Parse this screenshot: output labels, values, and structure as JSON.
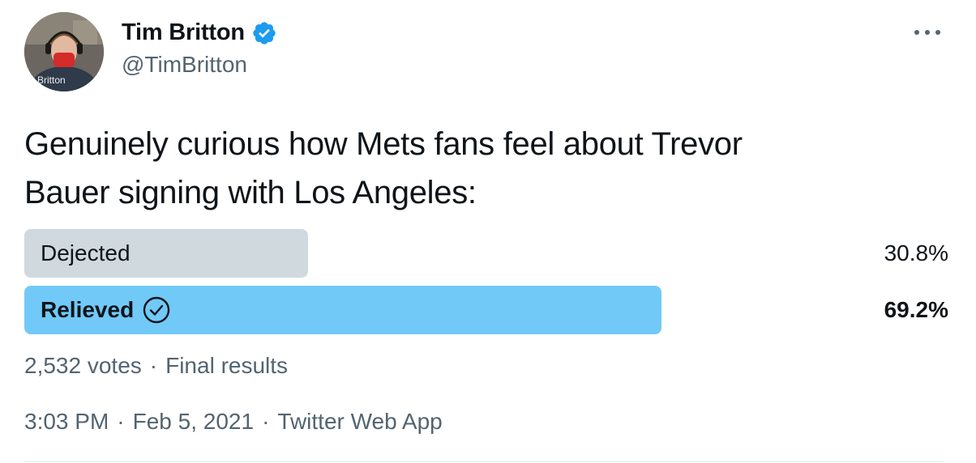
{
  "author": {
    "display_name": "Tim Britton",
    "handle": "@TimBritton",
    "verified": true,
    "avatar_caption": "n Britton"
  },
  "menu": {
    "icon": "more-horizontal-icon"
  },
  "tweet": {
    "text_line1": "Genuinely curious how Mets fans feel about Trevor",
    "text_line2": "Bauer signing with Los Angeles:"
  },
  "poll": {
    "options": [
      {
        "label": "Dejected",
        "percent_text": "30.8%",
        "percent": 30.8,
        "winner": false,
        "bar_color": "#cfd9de"
      },
      {
        "label": "Relieved",
        "percent_text": "69.2%",
        "percent": 69.2,
        "winner": true,
        "bar_color": "#71c9f8"
      }
    ],
    "votes": "2,532 votes",
    "separator": "·",
    "status": "Final results"
  },
  "meta": {
    "time": "3:03 PM",
    "date": "Feb 5, 2021",
    "source": "Twitter Web App",
    "separator": "·"
  },
  "colors": {
    "verified": "#1d9bf0",
    "secondary_text": "#536471",
    "primary_text": "#0f1419"
  }
}
